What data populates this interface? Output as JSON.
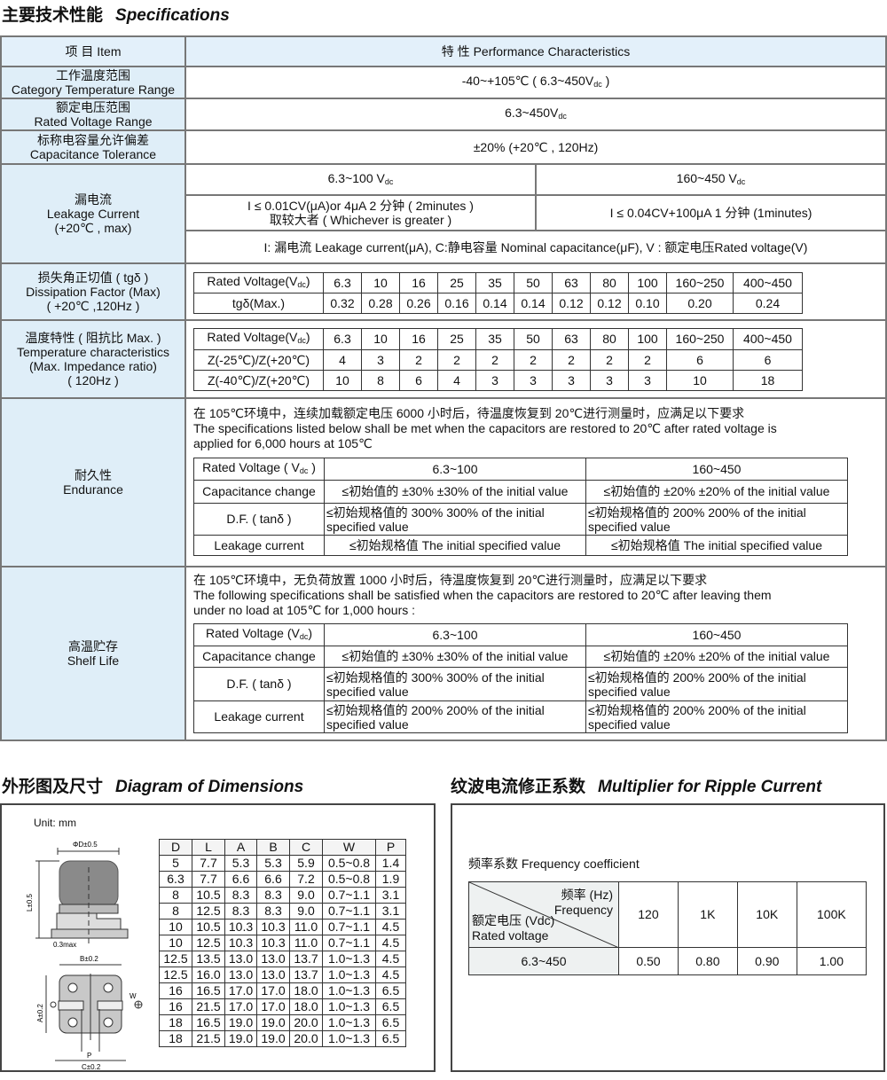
{
  "spec_title": {
    "cn": "主要技术性能",
    "en": "Specifications"
  },
  "header": {
    "item": "项 目 Item",
    "perf": "特 性 Performance Characteristics"
  },
  "rows": {
    "temp": {
      "cn": "工作温度范围",
      "en": "Category Temperature Range",
      "value": "-40~+105℃ ( 6.3~450V",
      "sub": "dc",
      "tail": " )"
    },
    "volt": {
      "cn": "额定电压范围",
      "en": "Rated Voltage Range",
      "value": "6.3~450V",
      "sub": "dc"
    },
    "tol": {
      "cn": "标称电容量允许偏差",
      "en": "Capacitance Tolerance",
      "value": "±20%   (+20℃ , 120Hz)"
    },
    "leak": {
      "cn": "漏电流",
      "en": "Leakage Current",
      "cond": "(+20℃ , max)",
      "low_range": "6.3~100 V",
      "high_range": "160~450 V",
      "sub": "dc",
      "low_line1": "I ≤ 0.01CV(μA)or 4μA 2 分钟 ( 2minutes )",
      "low_line2": "取较大者 ( Whichever is greater )",
      "high_value": "I ≤ 0.04CV+100μA  1 分钟 (1minutes)",
      "note": "I: 漏电流 Leakage current(μA), C:静电容量 Nominal capacitance(μF), V : 额定电压Rated voltage(V)"
    },
    "df": {
      "cn": "损失角正切值 ( tgδ )",
      "en": "Dissipation Factor (Max)",
      "cond": "( +20℃ ,120Hz )",
      "table": [
        [
          "Rated Voltage(Vdc)",
          "6.3",
          "10",
          "16",
          "25",
          "35",
          "50",
          "63",
          "80",
          "100",
          "160~250",
          "400~450"
        ],
        [
          "tgδ(Max.)",
          "0.32",
          "0.28",
          "0.26",
          "0.16",
          "0.14",
          "0.14",
          "0.12",
          "0.12",
          "0.10",
          "0.20",
          "0.24"
        ]
      ]
    },
    "tc": {
      "cn": "温度特性 ( 阻抗比 Max. )",
      "en": "Temperature characteristics",
      "en2": "(Max. Impedance ratio)",
      "cond": "( 120Hz )",
      "table": [
        [
          "Rated Voltage(Vdc)",
          "6.3",
          "10",
          "16",
          "25",
          "35",
          "50",
          "63",
          "80",
          "100",
          "160~250",
          "400~450"
        ],
        [
          "Z(-25℃)/Z(+20℃)",
          "4",
          "3",
          "2",
          "2",
          "2",
          "2",
          "2",
          "2",
          "2",
          "6",
          "6"
        ],
        [
          "Z(-40℃)/Z(+20℃)",
          "10",
          "8",
          "6",
          "4",
          "3",
          "3",
          "3",
          "3",
          "3",
          "10",
          "18"
        ]
      ]
    },
    "end": {
      "cn": "耐久性",
      "en": "Endurance",
      "lines": [
        "在 105℃环境中，连续加载额定电压 6000 小时后，待温度恢复到 20℃进行测量时，应满足以下要求",
        "The specifications listed below shall be met when the capacitors are restored to 20℃ after rated voltage is",
        "applied for 6,000 hours at 105℃"
      ],
      "table": [
        [
          "Rated Voltage ( Vdc )",
          "6.3~100",
          "160~450"
        ],
        [
          "Capacitance change",
          "≤初始值的 ±30%  ±30% of the initial value",
          "≤初始值的 ±20%  ±20% of the initial value"
        ],
        [
          "D.F. ( tanδ )",
          "≤初始规格值的 300%  300% of the initial specified value",
          "≤初始规格值的 200%  200% of the initial specified value"
        ],
        [
          "Leakage current",
          "≤初始规格值  The initial specified value",
          "≤初始规格值  The initial specified value"
        ]
      ]
    },
    "shelf": {
      "cn": "高温贮存",
      "en": "Shelf Life",
      "lines": [
        "在 105℃环境中，无负荷放置 1000 小时后，待温度恢复到 20℃进行测量时，应满足以下要求",
        "The following specifications shall be satisfied when the capacitors are restored to 20℃ after leaving them",
        "under no load at 105℃ for 1,000 hours :"
      ],
      "table": [
        [
          "Rated Voltage  (Vdc)",
          "6.3~100",
          "160~450"
        ],
        [
          "Capacitance change",
          "≤初始值的 ±30%  ±30% of the initial value",
          "≤初始值的 ±20%  ±20% of the initial value"
        ],
        [
          "D.F. ( tanδ )",
          "≤初始规格值的 300%  300% of the initial specified value",
          "≤初始规格值的 200%  200% of the initial specified value"
        ],
        [
          "Leakage current",
          "≤初始规格值的 200%  200% of the initial specified value",
          "≤初始规格值的 200%  200% of the initial specified value"
        ]
      ]
    }
  },
  "dim_title": {
    "cn": "外形图及尺寸",
    "en": "Diagram of Dimensions"
  },
  "dim": {
    "unit": "Unit: mm",
    "labels": {
      "d": "ΦD±0.5",
      "l": "L±0.5",
      "max": "0.3max",
      "b": "B±0.2",
      "a": "A±0.2",
      "p": "P",
      "c": "C±0.2",
      "w": "W"
    },
    "table": [
      [
        "D",
        "L",
        "A",
        "B",
        "C",
        "W",
        "P"
      ],
      [
        "5",
        "7.7",
        "5.3",
        "5.3",
        "5.9",
        "0.5~0.8",
        "1.4"
      ],
      [
        "6.3",
        "7.7",
        "6.6",
        "6.6",
        "7.2",
        "0.5~0.8",
        "1.9"
      ],
      [
        "8",
        "10.5",
        "8.3",
        "8.3",
        "9.0",
        "0.7~1.1",
        "3.1"
      ],
      [
        "8",
        "12.5",
        "8.3",
        "8.3",
        "9.0",
        "0.7~1.1",
        "3.1"
      ],
      [
        "10",
        "10.5",
        "10.3",
        "10.3",
        "11.0",
        "0.7~1.1",
        "4.5"
      ],
      [
        "10",
        "12.5",
        "10.3",
        "10.3",
        "11.0",
        "0.7~1.1",
        "4.5"
      ],
      [
        "12.5",
        "13.5",
        "13.0",
        "13.0",
        "13.7",
        "1.0~1.3",
        "4.5"
      ],
      [
        "12.5",
        "16.0",
        "13.0",
        "13.0",
        "13.7",
        "1.0~1.3",
        "4.5"
      ],
      [
        "16",
        "16.5",
        "17.0",
        "17.0",
        "18.0",
        "1.0~1.3",
        "6.5"
      ],
      [
        "16",
        "21.5",
        "17.0",
        "17.0",
        "18.0",
        "1.0~1.3",
        "6.5"
      ],
      [
        "18",
        "16.5",
        "19.0",
        "19.0",
        "20.0",
        "1.0~1.3",
        "6.5"
      ],
      [
        "18",
        "21.5",
        "19.0",
        "19.0",
        "20.0",
        "1.0~1.3",
        "6.5"
      ]
    ]
  },
  "ripple_title": {
    "cn": "纹波电流修正系数",
    "en": "Multiplier for Ripple Current"
  },
  "ripple": {
    "caption": "频率系数 Frequency coefficient",
    "freq_cn": "频率 (Hz)",
    "freq_en": "Frequency",
    "volt_cn": "额定电压 (Vdc)",
    "volt_en": "Rated voltage",
    "freqs": [
      "120",
      "1K",
      "10K",
      "100K"
    ],
    "range": "6.3~450",
    "values": [
      "0.50",
      "0.80",
      "0.90",
      "1.00"
    ]
  }
}
